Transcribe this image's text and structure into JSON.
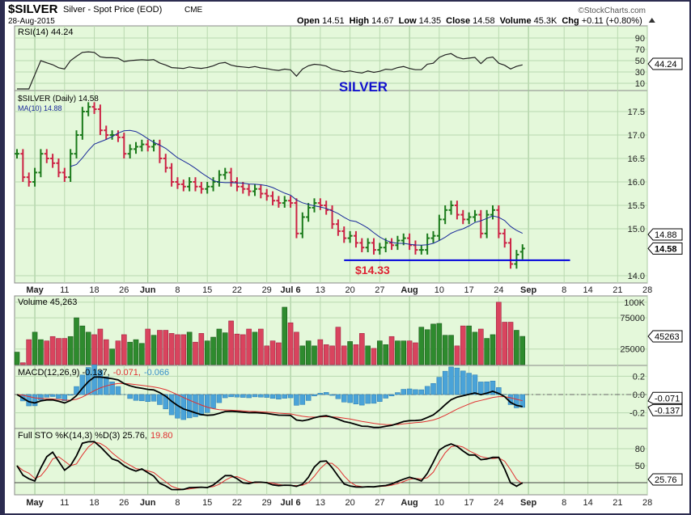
{
  "header": {
    "symbol": "$SILVER",
    "name": "Silver - Spot Price (EOD)",
    "exchange": "CME",
    "date": "28-Aug-2015",
    "watermark": "©StockCharts.com",
    "open_label": "Open",
    "open": "14.51",
    "high_label": "High",
    "high": "14.67",
    "low_label": "Low",
    "low": "14.35",
    "close_label": "Close",
    "close": "14.58",
    "volume_label": "Volume",
    "volume": "45.3K",
    "chg_label": "Chg",
    "chg": "+0.11 (+0.80%)"
  },
  "chart_data": {
    "type": "ohlc",
    "title": "SILVER",
    "colors": {
      "up": "#1a7a1a",
      "down": "#cc2244",
      "ma": "#1a2a9a",
      "support": "#0000dd",
      "panel": "#e4f8da",
      "grid": "#b9d9b0"
    },
    "annotation": {
      "label": "$14.33",
      "support_level": 14.33,
      "from": "2015-07-17",
      "to": "2015-09-09"
    },
    "dates": [
      "2015-04-29",
      "2015-04-30",
      "2015-05-01",
      "2015-05-04",
      "2015-05-05",
      "2015-05-06",
      "2015-05-07",
      "2015-05-08",
      "2015-05-11",
      "2015-05-12",
      "2015-05-13",
      "2015-05-14",
      "2015-05-15",
      "2015-05-18",
      "2015-05-19",
      "2015-05-20",
      "2015-05-21",
      "2015-05-22",
      "2015-05-26",
      "2015-05-27",
      "2015-05-28",
      "2015-05-29",
      "2015-06-01",
      "2015-06-02",
      "2015-06-03",
      "2015-06-04",
      "2015-06-05",
      "2015-06-08",
      "2015-06-09",
      "2015-06-10",
      "2015-06-11",
      "2015-06-12",
      "2015-06-15",
      "2015-06-16",
      "2015-06-17",
      "2015-06-18",
      "2015-06-19",
      "2015-06-22",
      "2015-06-23",
      "2015-06-24",
      "2015-06-25",
      "2015-06-26",
      "2015-06-29",
      "2015-06-30",
      "2015-07-01",
      "2015-07-02",
      "2015-07-06",
      "2015-07-07",
      "2015-07-08",
      "2015-07-09",
      "2015-07-10",
      "2015-07-13",
      "2015-07-14",
      "2015-07-15",
      "2015-07-16",
      "2015-07-17",
      "2015-07-20",
      "2015-07-21",
      "2015-07-22",
      "2015-07-23",
      "2015-07-24",
      "2015-07-27",
      "2015-07-28",
      "2015-07-29",
      "2015-07-30",
      "2015-07-31",
      "2015-08-03",
      "2015-08-04",
      "2015-08-05",
      "2015-08-06",
      "2015-08-07",
      "2015-08-10",
      "2015-08-11",
      "2015-08-12",
      "2015-08-13",
      "2015-08-14",
      "2015-08-17",
      "2015-08-18",
      "2015-08-19",
      "2015-08-20",
      "2015-08-21",
      "2015-08-24",
      "2015-08-25",
      "2015-08-26",
      "2015-08-27",
      "2015-08-28"
    ],
    "close": [
      16.6,
      16.1,
      16.0,
      16.2,
      16.6,
      16.5,
      16.4,
      16.2,
      16.1,
      16.6,
      17.0,
      17.5,
      17.6,
      17.55,
      17.1,
      17.0,
      17.0,
      16.95,
      16.6,
      16.7,
      16.75,
      16.8,
      16.75,
      16.8,
      16.5,
      16.3,
      16.0,
      15.95,
      15.9,
      16.0,
      15.9,
      15.85,
      15.9,
      16.0,
      16.15,
      16.2,
      16.0,
      15.9,
      15.85,
      15.8,
      15.85,
      15.75,
      15.7,
      15.6,
      15.55,
      15.6,
      15.55,
      14.9,
      15.25,
      15.45,
      15.55,
      15.5,
      15.4,
      15.1,
      14.95,
      14.8,
      14.85,
      14.7,
      14.6,
      14.7,
      14.55,
      14.6,
      14.7,
      14.65,
      14.75,
      14.8,
      14.65,
      14.55,
      14.55,
      14.8,
      14.85,
      15.2,
      15.4,
      15.5,
      15.3,
      15.2,
      15.25,
      15.3,
      14.9,
      15.3,
      15.4,
      14.9,
      14.7,
      14.25,
      14.45,
      14.58
    ],
    "last_bar": {
      "open": 14.51,
      "high": 14.67,
      "low": 14.35,
      "close": 14.58
    },
    "volume": [
      20000,
      3000,
      40000,
      52000,
      40000,
      38000,
      45000,
      42000,
      42000,
      45000,
      75000,
      62000,
      52000,
      48000,
      57000,
      40000,
      25000,
      38000,
      48000,
      36000,
      40000,
      34000,
      57000,
      47000,
      55000,
      55000,
      50000,
      48000,
      48000,
      52000,
      36000,
      50000,
      38000,
      44000,
      57000,
      51000,
      70000,
      49000,
      48000,
      57000,
      52000,
      57000,
      30000,
      38000,
      35000,
      92000,
      67000,
      52000,
      30000,
      38000,
      30000,
      40000,
      32000,
      30000,
      60000,
      30000,
      37000,
      32000,
      50000,
      30000,
      26000,
      38000,
      32000,
      45000,
      38000,
      38000,
      38000,
      35000,
      60000,
      56000,
      65000,
      66000,
      47000,
      47000,
      30000,
      62000,
      62000,
      52000,
      57000,
      42000,
      48000,
      100000,
      68000,
      68000,
      55000,
      45263
    ],
    "date_axis": [
      {
        "label": "May",
        "date": "2015-05-04",
        "month": true
      },
      {
        "label": "11",
        "date": "2015-05-11"
      },
      {
        "label": "18",
        "date": "2015-05-18"
      },
      {
        "label": "26",
        "date": "2015-05-26"
      },
      {
        "label": "Jun",
        "date": "2015-06-01",
        "month": true
      },
      {
        "label": "8",
        "date": "2015-06-08"
      },
      {
        "label": "15",
        "date": "2015-06-15"
      },
      {
        "label": "22",
        "date": "2015-06-22"
      },
      {
        "label": "29",
        "date": "2015-06-29"
      },
      {
        "label": "Jul 6",
        "date": "2015-07-06",
        "month": true
      },
      {
        "label": "13",
        "date": "2015-07-13"
      },
      {
        "label": "20",
        "date": "2015-07-20"
      },
      {
        "label": "27",
        "date": "2015-07-27"
      },
      {
        "label": "Aug",
        "date": "2015-08-03",
        "month": true
      },
      {
        "label": "10",
        "date": "2015-08-10"
      },
      {
        "label": "17",
        "date": "2015-08-17"
      },
      {
        "label": "24",
        "date": "2015-08-24"
      },
      {
        "label": "Sep",
        "date": "2015-08-31",
        "month": true
      },
      {
        "label": "8",
        "date": "2015-09-08"
      },
      {
        "label": "14",
        "date": "2015-09-14"
      },
      {
        "label": "21",
        "date": "2015-09-21"
      },
      {
        "label": "28",
        "date": "2015-09-28"
      }
    ],
    "panels": {
      "rsi": {
        "label": "RSI(14) 44.24",
        "value": "44.24",
        "ticks": [
          90,
          70,
          50,
          30,
          10
        ],
        "ylim": [
          0,
          100
        ]
      },
      "price": {
        "label": "$SILVER (Daily) 14.58",
        "ma_label": "MA(10) 14.88",
        "ma_value": "14.88",
        "close_value": "14.58",
        "ticks": [
          "17.5",
          "17.0",
          "16.5",
          "16.0",
          "15.5",
          "15.0",
          "14.0"
        ],
        "ylim": [
          13.8,
          17.9
        ]
      },
      "volume": {
        "label": "Volume 45,263",
        "value": "45263",
        "ticks": [
          "100K",
          "75000",
          "25000"
        ],
        "ylim": [
          0,
          110000
        ]
      },
      "macd": {
        "label_main": "MACD(12,26,9)",
        "macd": "-0.137",
        "signal": "-0.071",
        "hist": "-0.066",
        "ticks": [
          "0.2",
          "0.0",
          "-0.2"
        ],
        "ylim": [
          -0.37,
          0.32
        ]
      },
      "sto": {
        "label_main": "Full STO %K(14,3) %D(3)",
        "k": "25.76",
        "d": "19.80",
        "ticks": [
          80,
          50
        ],
        "ylim": [
          0,
          100
        ]
      }
    }
  }
}
